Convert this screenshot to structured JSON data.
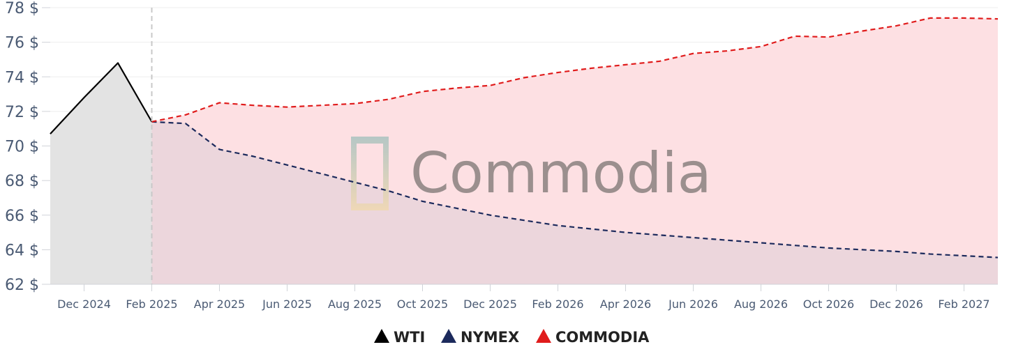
{
  "chart_data": {
    "type": "line",
    "title": "",
    "xlabel": "",
    "ylabel": "",
    "ylim": [
      62,
      78
    ],
    "y_ticks": [
      "62 $",
      "64 $",
      "66 $",
      "68 $",
      "70 $",
      "72 $",
      "74 $",
      "76 $",
      "78 $"
    ],
    "x_start": "2024-11",
    "x_end": "2027-03",
    "x_ticks": [
      {
        "label": "Dec 2024",
        "date": "2024-12"
      },
      {
        "label": "Feb 2025",
        "date": "2025-02"
      },
      {
        "label": "Apr 2025",
        "date": "2025-04"
      },
      {
        "label": "Jun 2025",
        "date": "2025-06"
      },
      {
        "label": "Aug 2025",
        "date": "2025-08"
      },
      {
        "label": "Oct 2025",
        "date": "2025-10"
      },
      {
        "label": "Dec 2025",
        "date": "2025-12"
      },
      {
        "label": "Feb 2026",
        "date": "2026-02"
      },
      {
        "label": "Apr 2026",
        "date": "2026-04"
      },
      {
        "label": "Jun 2026",
        "date": "2026-06"
      },
      {
        "label": "Aug 2026",
        "date": "2026-08"
      },
      {
        "label": "Oct 2026",
        "date": "2026-10"
      },
      {
        "label": "Dec 2026",
        "date": "2026-12"
      },
      {
        "label": "Feb 2027",
        "date": "2027-02"
      }
    ],
    "divider_date": "2025-02",
    "grid": true,
    "legend_position": "bottom-center",
    "series": [
      {
        "name": "WTI",
        "color": "#000000",
        "fill": "#e3e3e3",
        "style": "solid",
        "points": [
          [
            "2024-11",
            70.7
          ],
          [
            "2024-12",
            72.8
          ],
          [
            "2025-01",
            74.8
          ],
          [
            "2025-02",
            71.4
          ]
        ]
      },
      {
        "name": "NYMEX",
        "color": "#1c2a5c",
        "fill": "#e6d3da",
        "style": "dashed",
        "points": [
          [
            "2025-02",
            71.4
          ],
          [
            "2025-03",
            71.3
          ],
          [
            "2025-04",
            69.8
          ],
          [
            "2025-05",
            69.4
          ],
          [
            "2025-06",
            68.9
          ],
          [
            "2025-07",
            68.4
          ],
          [
            "2025-08",
            67.9
          ],
          [
            "2025-09",
            67.4
          ],
          [
            "2025-10",
            66.8
          ],
          [
            "2025-11",
            66.4
          ],
          [
            "2025-12",
            66.0
          ],
          [
            "2026-01",
            65.7
          ],
          [
            "2026-02",
            65.4
          ],
          [
            "2026-03",
            65.2
          ],
          [
            "2026-04",
            65.0
          ],
          [
            "2026-05",
            64.85
          ],
          [
            "2026-06",
            64.7
          ],
          [
            "2026-07",
            64.55
          ],
          [
            "2026-08",
            64.4
          ],
          [
            "2026-09",
            64.25
          ],
          [
            "2026-10",
            64.1
          ],
          [
            "2026-11",
            64.0
          ],
          [
            "2026-12",
            63.9
          ],
          [
            "2027-01",
            63.75
          ],
          [
            "2027-02",
            63.65
          ],
          [
            "2027-03",
            63.55
          ]
        ]
      },
      {
        "name": "COMMODIA",
        "color": "#e01c1c",
        "fill": "#fde0e3",
        "style": "dashed",
        "points": [
          [
            "2025-02",
            71.4
          ],
          [
            "2025-03",
            71.8
          ],
          [
            "2025-04",
            72.5
          ],
          [
            "2025-05",
            72.35
          ],
          [
            "2025-06",
            72.25
          ],
          [
            "2025-07",
            72.35
          ],
          [
            "2025-08",
            72.45
          ],
          [
            "2025-09",
            72.7
          ],
          [
            "2025-10",
            73.15
          ],
          [
            "2025-11",
            73.35
          ],
          [
            "2025-12",
            73.5
          ],
          [
            "2026-01",
            73.95
          ],
          [
            "2026-02",
            74.25
          ],
          [
            "2026-03",
            74.5
          ],
          [
            "2026-04",
            74.7
          ],
          [
            "2026-05",
            74.9
          ],
          [
            "2026-06",
            75.35
          ],
          [
            "2026-07",
            75.5
          ],
          [
            "2026-08",
            75.75
          ],
          [
            "2026-09",
            76.35
          ],
          [
            "2026-10",
            76.3
          ],
          [
            "2026-11",
            76.65
          ],
          [
            "2026-12",
            76.95
          ],
          [
            "2027-01",
            77.4
          ],
          [
            "2027-02",
            77.4
          ],
          [
            "2027-03",
            77.35
          ]
        ]
      }
    ]
  },
  "watermark": {
    "text": "Commodia"
  }
}
